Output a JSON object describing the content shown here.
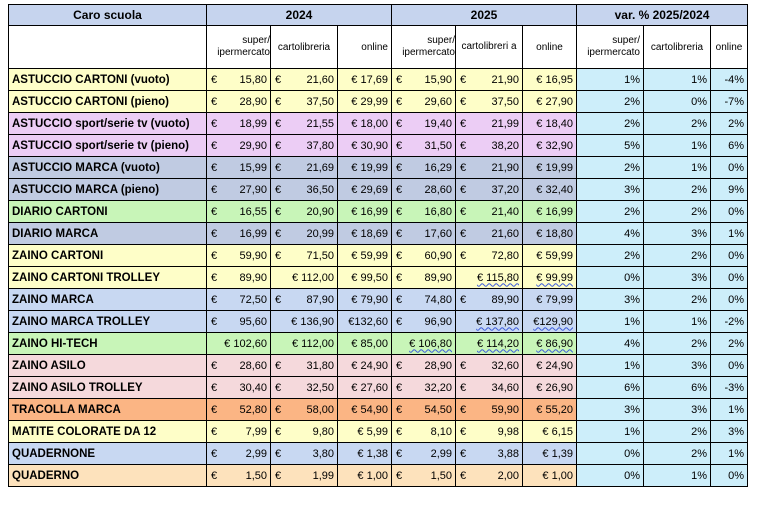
{
  "header": {
    "title": "Caro scuola",
    "year1": "2024",
    "year2": "2025",
    "var": "var. % 2025/2024"
  },
  "subheaders": {
    "s2024": [
      "super/ ipermercato",
      "cartolibreria",
      "online"
    ],
    "s2025": [
      "super/ ipermercato",
      "cartolibreri a",
      "online"
    ],
    "svar": [
      "super/ ipermercato",
      "cartolibreria",
      "online"
    ]
  },
  "colors": {
    "header_bg": "#c6d4ee",
    "pct_bg": "#cdeefa",
    "yellow": "#fefec8",
    "purple": "#eccdf5",
    "bluegray": "#c0cbe2",
    "green": "#c8f5b8",
    "pink": "#f5d9dc",
    "orange": "#fbb584",
    "lightblue": "#c8d8f2",
    "peach": "#fde2bc"
  },
  "rows": [
    {
      "name": "ASTUCCIO CARTONI (vuoto)",
      "color": "#fefec8",
      "v2024": [
        "€|15,80",
        "€|21,60",
        "€ 17,69"
      ],
      "v2025": [
        "€|15,90",
        "€|21,90",
        "€ 16,95"
      ],
      "var": [
        "1%",
        "1%",
        "-4%"
      ]
    },
    {
      "name": "ASTUCCIO CARTONI (pieno)",
      "color": "#fefec8",
      "v2024": [
        "€|28,90",
        "€|37,50",
        "€ 29,99"
      ],
      "v2025": [
        "€|29,60",
        "€|37,50",
        "€ 27,90"
      ],
      "var": [
        "2%",
        "0%",
        "-7%"
      ]
    },
    {
      "name": "ASTUCCIO sport/serie tv (vuoto)",
      "color": "#eccdf5",
      "v2024": [
        "€|18,99",
        "€|21,55",
        "€ 18,00"
      ],
      "v2025": [
        "€|19,40",
        "€|21,99",
        "€ 18,40"
      ],
      "var": [
        "2%",
        "2%",
        "2%"
      ]
    },
    {
      "name": "ASTUCCIO sport/serie tv (pieno)",
      "color": "#eccdf5",
      "v2024": [
        "€|29,90",
        "€|37,80",
        "€ 30,90"
      ],
      "v2025": [
        "€|31,50",
        "€|38,20",
        "€ 32,90"
      ],
      "var": [
        "5%",
        "1%",
        "6%"
      ]
    },
    {
      "name": "ASTUCCIO MARCA (vuoto)",
      "color": "#c0cbe2",
      "v2024": [
        "€|15,99",
        "€|21,69",
        "€ 19,99"
      ],
      "v2025": [
        "€|16,29",
        "€|21,90",
        "€ 19,99"
      ],
      "var": [
        "2%",
        "1%",
        "0%"
      ]
    },
    {
      "name": "ASTUCCIO  MARCA (pieno)",
      "color": "#c0cbe2",
      "v2024": [
        "€|27,90",
        "€|36,50",
        "€ 29,69"
      ],
      "v2025": [
        "€|28,60",
        "€|37,20",
        "€ 32,40"
      ],
      "var": [
        "3%",
        "2%",
        "9%"
      ]
    },
    {
      "name": "DIARIO CARTONI",
      "color": "#c8f5b8",
      "v2024": [
        "€|16,55",
        "€|20,90",
        "€ 16,99"
      ],
      "v2025": [
        "€|16,80",
        "€|21,40",
        "€ 16,99"
      ],
      "var": [
        "2%",
        "2%",
        "0%"
      ]
    },
    {
      "name": "DIARIO MARCA",
      "color": "#c0cbe2",
      "v2024": [
        "€|16,99",
        "€|20,99",
        "€ 18,69"
      ],
      "v2025": [
        "€|17,60",
        "€|21,60",
        "€ 18,80"
      ],
      "var": [
        "4%",
        "3%",
        "1%"
      ]
    },
    {
      "name": "ZAINO CARTONI",
      "color": "#fefec8",
      "v2024": [
        "€|59,90",
        "€|71,50",
        "€ 59,99"
      ],
      "v2025": [
        "€|60,90",
        "€|72,80",
        "€ 59,99"
      ],
      "var": [
        "2%",
        "2%",
        "0%"
      ]
    },
    {
      "name": "ZAINO CARTONI TROLLEY",
      "color": "#fefec8",
      "v2024": [
        "€|89,90",
        "€ 112,00",
        "€ 99,50"
      ],
      "v2025": [
        "€|89,90",
        "€ 115,80",
        "€ 99,99"
      ],
      "var": [
        "0%",
        "3%",
        "0%"
      ]
    },
    {
      "name": "ZAINO MARCA",
      "color": "#c8d8f2",
      "v2024": [
        "€|72,50",
        "€|87,90",
        "€ 79,90"
      ],
      "v2025": [
        "€|74,80",
        "€|89,90",
        "€ 79,99"
      ],
      "var": [
        "3%",
        "2%",
        "0%"
      ]
    },
    {
      "name": "ZAINO MARCA TROLLEY",
      "color": "#c8d8f2",
      "v2024": [
        "€|95,60",
        "€ 136,90",
        "€132,60"
      ],
      "v2025": [
        "€|96,90",
        "€ 137,80",
        "€129,90"
      ],
      "var": [
        "1%",
        "1%",
        "-2%"
      ]
    },
    {
      "name": "ZAINO HI-TECH",
      "color": "#c8f5b8",
      "v2024": [
        "€ 102,60",
        "€ 112,00",
        "€ 85,00"
      ],
      "v2025": [
        "€ 106,80",
        "€ 114,20",
        "€ 86,90"
      ],
      "var": [
        "4%",
        "2%",
        "2%"
      ]
    },
    {
      "name": "ZAINO ASILO",
      "color": "#f5d9dc",
      "v2024": [
        "€|28,60",
        "€|31,80",
        "€ 24,90"
      ],
      "v2025": [
        "€|28,90",
        "€|32,60",
        "€ 24,90"
      ],
      "var": [
        "1%",
        "3%",
        "0%"
      ]
    },
    {
      "name": "ZAINO ASILO TROLLEY",
      "color": "#f5d9dc",
      "v2024": [
        "€|30,40",
        "€|32,50",
        "€ 27,60"
      ],
      "v2025": [
        "€|32,20",
        "€|34,60",
        "€ 26,90"
      ],
      "var": [
        "6%",
        "6%",
        "-3%"
      ]
    },
    {
      "name": "TRACOLLA MARCA",
      "color": "#fbb584",
      "v2024": [
        "€|52,80",
        "€|58,00",
        "€ 54,90"
      ],
      "v2025": [
        "€|54,50",
        "€|59,90",
        "€ 55,20"
      ],
      "var": [
        "3%",
        "3%",
        "1%"
      ]
    },
    {
      "name": "MATITE COLORATE DA 12",
      "color": "#fefec8",
      "v2024": [
        "€|7,99",
        "€|9,80",
        "€ 5,99"
      ],
      "v2025": [
        "€|8,10",
        "€|9,98",
        "€ 6,15"
      ],
      "var": [
        "1%",
        "2%",
        "3%"
      ]
    },
    {
      "name": "QUADERNONE",
      "color": "#c8d8f2",
      "v2024": [
        "€|2,99",
        "€|3,80",
        "€ 1,38"
      ],
      "v2025": [
        "€|2,99",
        "€|3,88",
        "€ 1,39"
      ],
      "var": [
        "0%",
        "2%",
        "1%"
      ]
    },
    {
      "name": "QUADERNO",
      "color": "#fde2bc",
      "v2024": [
        "€|1,50",
        "€|1,99",
        "€ 1,00"
      ],
      "v2025": [
        "€|1,50",
        "€|2,00",
        "€ 1,00"
      ],
      "var": [
        "0%",
        "1%",
        "0%"
      ]
    }
  ]
}
